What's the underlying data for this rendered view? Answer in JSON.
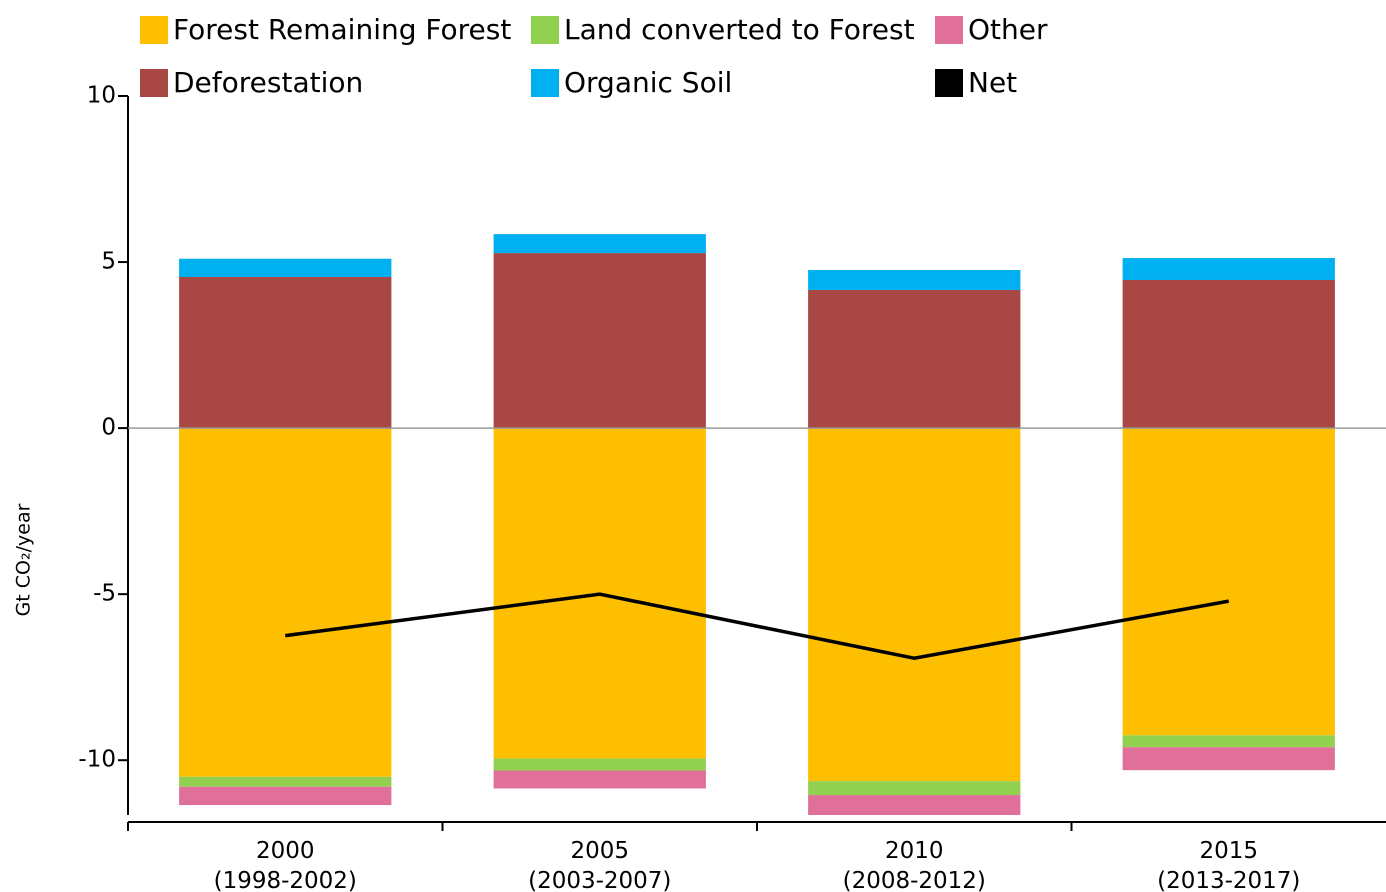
{
  "chart_data": {
    "type": "bar",
    "stacked": true,
    "y_label": "Gt CO₂/year",
    "categories": [
      "2000\n(1998-2002)",
      "2005\n(2003-2007)",
      "2010\n(2008-2012)",
      "2015\n(2013-2017)"
    ],
    "series": [
      {
        "name": "Forest Remaining Forest",
        "color": "#fdbf00",
        "values": [
          -10.5,
          -9.95,
          -10.63,
          -9.25
        ]
      },
      {
        "name": "Land converted to Forest",
        "color": "#92d050",
        "values": [
          -0.3,
          -0.36,
          -0.42,
          -0.36
        ]
      },
      {
        "name": "Other",
        "color": "#e06f9a",
        "values": [
          -0.55,
          -0.54,
          -0.6,
          -0.69
        ]
      },
      {
        "name": "Deforestation",
        "color": "#a94744",
        "values": [
          4.55,
          5.27,
          4.16,
          4.46
        ]
      },
      {
        "name": "Organic Soil",
        "color": "#00b0f0",
        "values": [
          0.55,
          0.57,
          0.6,
          0.66
        ]
      },
      {
        "name": "Net",
        "color": "#000000",
        "type": "line",
        "values": [
          -6.25,
          -5.0,
          -6.93,
          -5.21
        ]
      }
    ],
    "ylim": [
      -11.65,
      10
    ],
    "yticks": [
      -10,
      -5,
      0,
      5,
      10
    ],
    "zero_line": true
  }
}
